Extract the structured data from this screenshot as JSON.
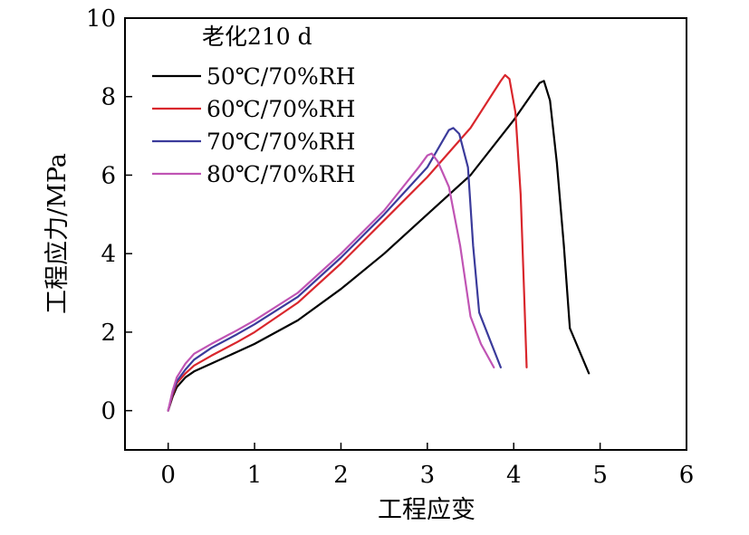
{
  "chart_data": {
    "type": "line",
    "title": "",
    "xlabel": "工程应变",
    "ylabel": "工程应力/MPa",
    "xlim": [
      -0.5,
      6
    ],
    "ylim": [
      -1,
      10
    ],
    "xticks": [
      0,
      1,
      2,
      3,
      4,
      5,
      6
    ],
    "yticks": [
      0,
      2,
      4,
      6,
      8,
      10
    ],
    "grid": false,
    "legend_position": "top-left",
    "legend_title": "老化210 d",
    "series": [
      {
        "name": "50℃/70%RH",
        "color": "#000000",
        "points": [
          [
            0,
            0
          ],
          [
            0.05,
            0.35
          ],
          [
            0.1,
            0.6
          ],
          [
            0.2,
            0.85
          ],
          [
            0.3,
            1.0
          ],
          [
            0.5,
            1.2
          ],
          [
            0.8,
            1.5
          ],
          [
            1.0,
            1.7
          ],
          [
            1.5,
            2.3
          ],
          [
            2.0,
            3.1
          ],
          [
            2.5,
            4.0
          ],
          [
            3.0,
            5.0
          ],
          [
            3.5,
            6.0
          ],
          [
            4.0,
            7.4
          ],
          [
            4.3,
            8.35
          ],
          [
            4.35,
            8.4
          ],
          [
            4.42,
            7.9
          ],
          [
            4.5,
            6.3
          ],
          [
            4.58,
            4.2
          ],
          [
            4.65,
            2.1
          ],
          [
            4.87,
            0.95
          ]
        ]
      },
      {
        "name": "60℃/70%RH",
        "color": "#d9262c",
        "points": [
          [
            0,
            0
          ],
          [
            0.05,
            0.4
          ],
          [
            0.1,
            0.7
          ],
          [
            0.2,
            0.95
          ],
          [
            0.3,
            1.15
          ],
          [
            0.5,
            1.4
          ],
          [
            0.8,
            1.75
          ],
          [
            1.0,
            2.0
          ],
          [
            1.5,
            2.75
          ],
          [
            2.0,
            3.75
          ],
          [
            2.5,
            4.85
          ],
          [
            3.0,
            5.95
          ],
          [
            3.5,
            7.2
          ],
          [
            3.85,
            8.4
          ],
          [
            3.9,
            8.55
          ],
          [
            3.95,
            8.45
          ],
          [
            4.02,
            7.6
          ],
          [
            4.08,
            5.5
          ],
          [
            4.12,
            3.0
          ],
          [
            4.15,
            1.1
          ]
        ]
      },
      {
        "name": "70℃/70%RH",
        "color": "#3b3b9b",
        "points": [
          [
            0,
            0
          ],
          [
            0.05,
            0.45
          ],
          [
            0.1,
            0.75
          ],
          [
            0.2,
            1.05
          ],
          [
            0.3,
            1.3
          ],
          [
            0.5,
            1.6
          ],
          [
            0.8,
            1.95
          ],
          [
            1.0,
            2.2
          ],
          [
            1.5,
            2.9
          ],
          [
            2.0,
            3.9
          ],
          [
            2.5,
            5.0
          ],
          [
            3.0,
            6.2
          ],
          [
            3.25,
            7.15
          ],
          [
            3.3,
            7.2
          ],
          [
            3.37,
            7.05
          ],
          [
            3.47,
            6.2
          ],
          [
            3.53,
            4.2
          ],
          [
            3.6,
            2.5
          ],
          [
            3.85,
            1.1
          ]
        ]
      },
      {
        "name": "80℃/70%RH",
        "color": "#c054b4",
        "points": [
          [
            0,
            0
          ],
          [
            0.05,
            0.5
          ],
          [
            0.1,
            0.85
          ],
          [
            0.2,
            1.2
          ],
          [
            0.3,
            1.45
          ],
          [
            0.5,
            1.7
          ],
          [
            0.8,
            2.05
          ],
          [
            1.0,
            2.3
          ],
          [
            1.5,
            3.0
          ],
          [
            2.0,
            4.0
          ],
          [
            2.5,
            5.1
          ],
          [
            2.9,
            6.2
          ],
          [
            3.0,
            6.5
          ],
          [
            3.05,
            6.55
          ],
          [
            3.12,
            6.35
          ],
          [
            3.25,
            5.7
          ],
          [
            3.38,
            4.2
          ],
          [
            3.5,
            2.4
          ],
          [
            3.62,
            1.7
          ],
          [
            3.77,
            1.1
          ]
        ]
      }
    ]
  }
}
